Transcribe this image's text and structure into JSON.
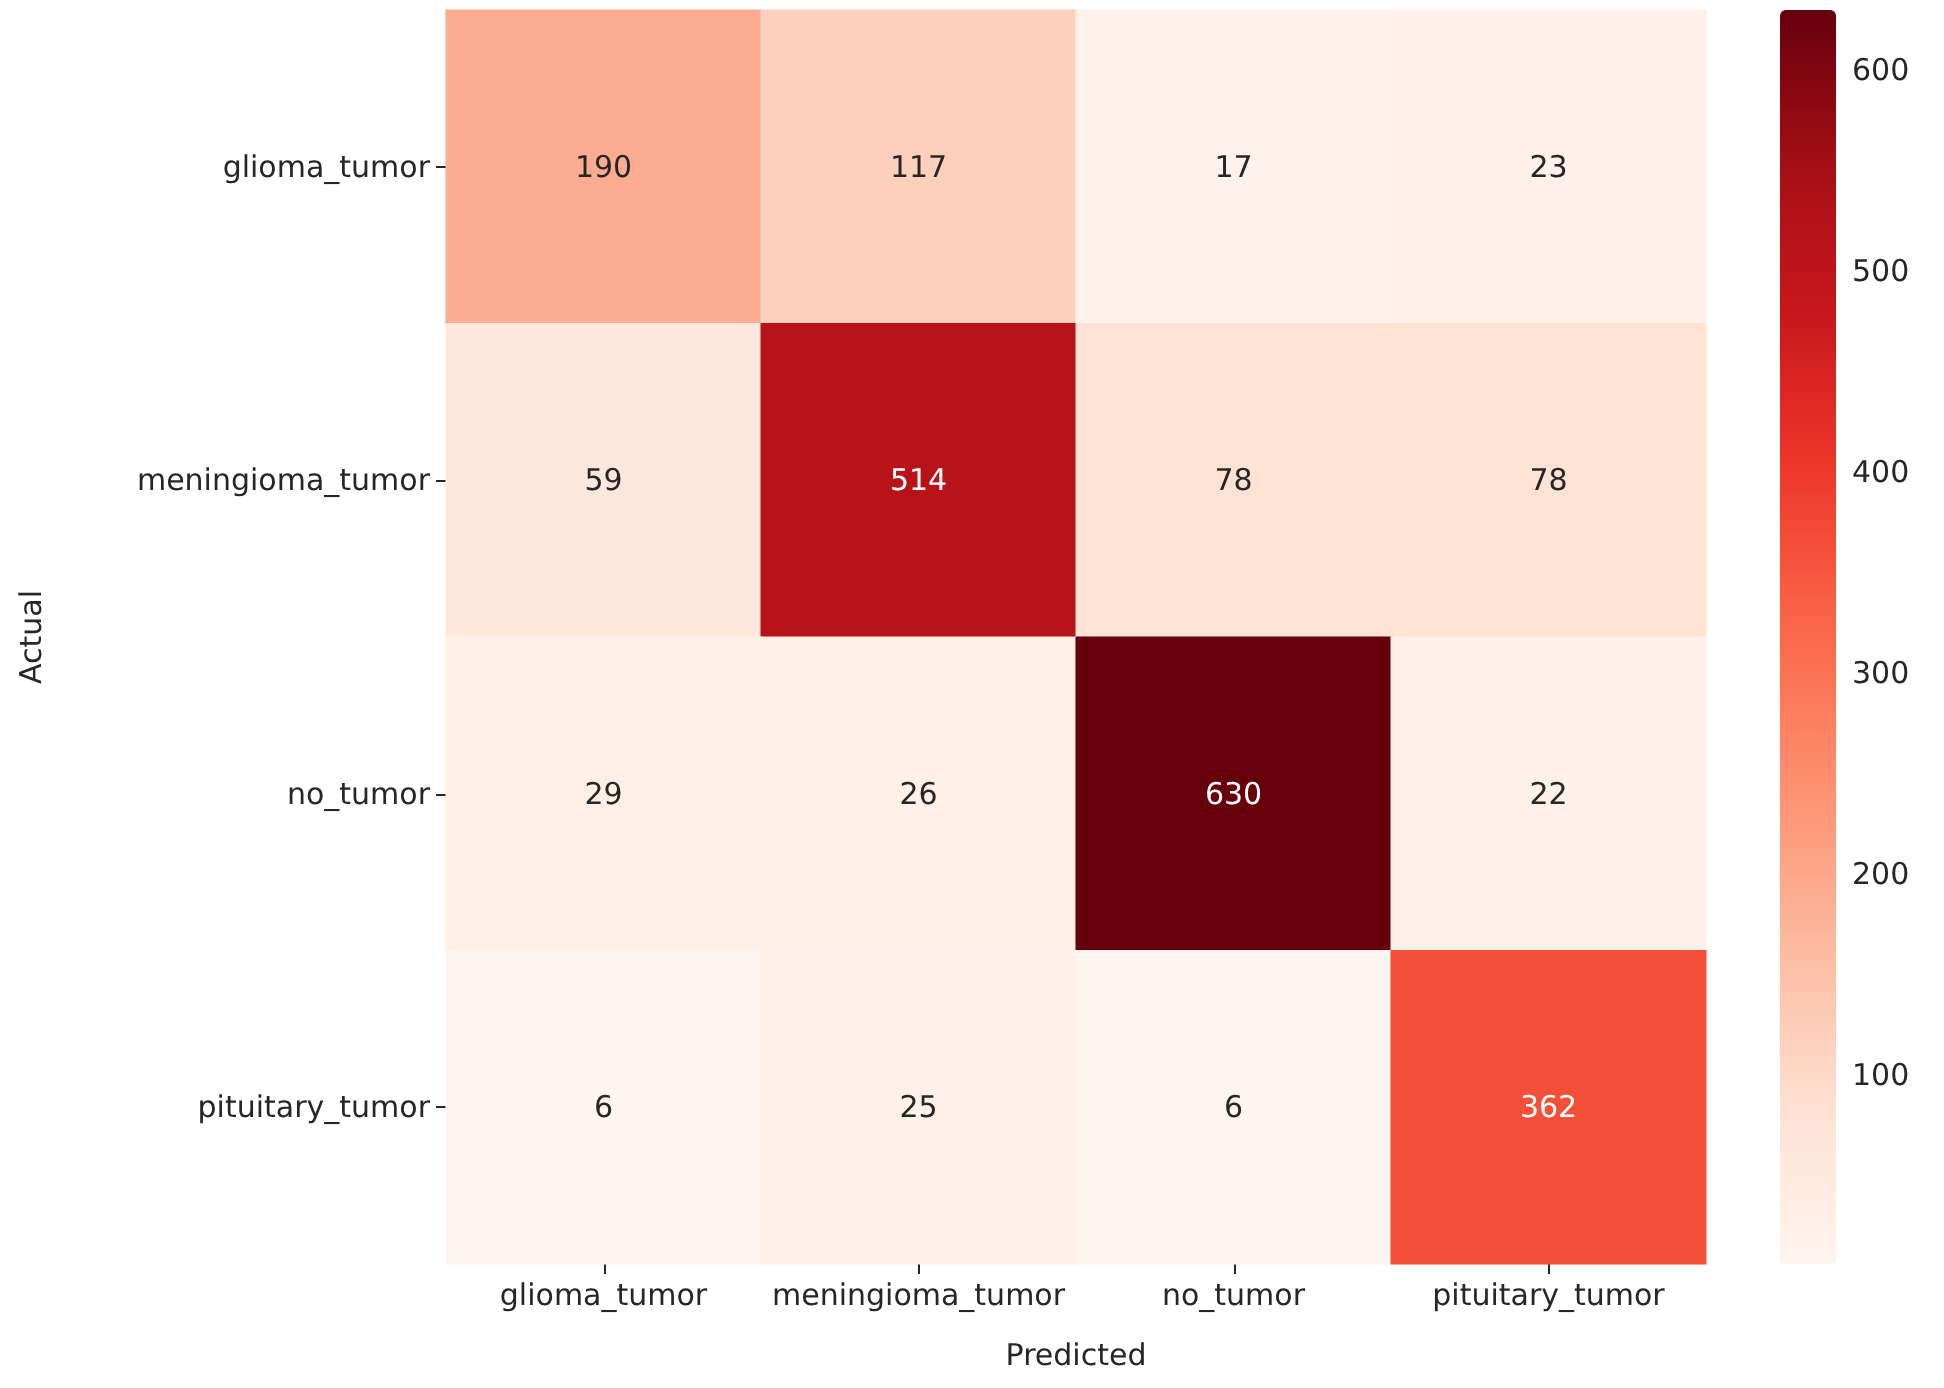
{
  "chart_data": {
    "type": "heatmap",
    "xlabel": "Predicted",
    "ylabel": "Actual",
    "categories": [
      "glioma_tumor",
      "meningioma_tumor",
      "no_tumor",
      "pituitary_tumor"
    ],
    "y_categories": [
      "glioma_tumor",
      "meningioma_tumor",
      "no_tumor",
      "pituitary_tumor"
    ],
    "cells": [
      [
        190,
        117,
        17,
        23
      ],
      [
        59,
        514,
        78,
        78
      ],
      [
        29,
        26,
        630,
        22
      ],
      [
        6,
        25,
        6,
        362
      ]
    ],
    "data_labels": true,
    "clim": [
      6,
      630
    ],
    "cticks": [
      100,
      200,
      300,
      400,
      500,
      600
    ]
  }
}
